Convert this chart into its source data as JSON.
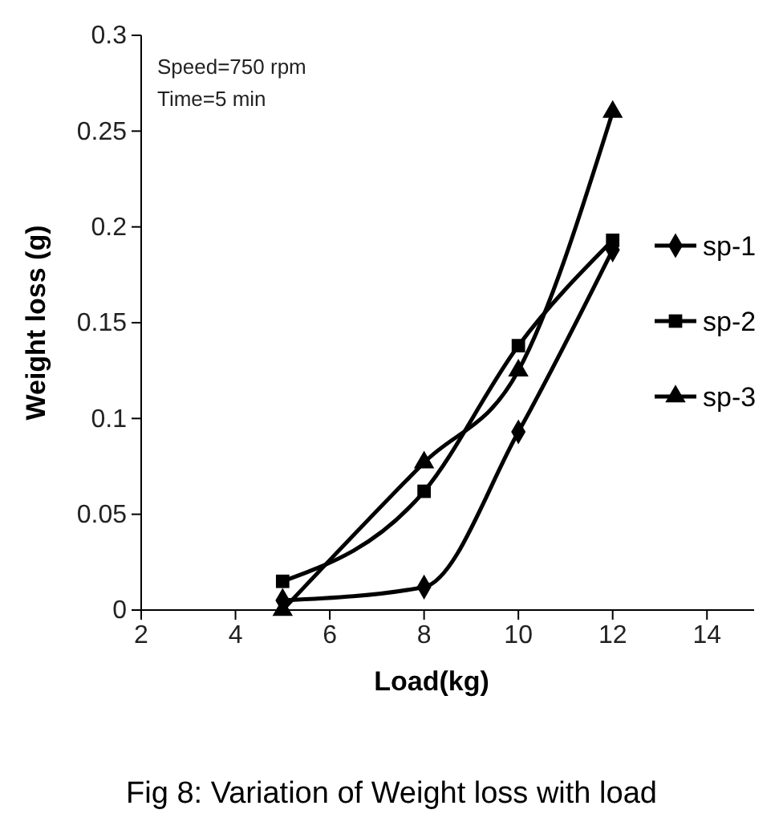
{
  "chart_data": {
    "type": "line",
    "title": "Fig 8: Variation of Weight loss with load",
    "xlabel": "Load(kg)",
    "ylabel": "Weight loss (g)",
    "annotations": [
      "Speed=750 rpm",
      "Time=5 min"
    ],
    "x": [
      5,
      8,
      10,
      12
    ],
    "series": [
      {
        "name": "sp-1",
        "color": "#000000",
        "marker": "diamond",
        "values": [
          0.005,
          0.012,
          0.093,
          0.188
        ]
      },
      {
        "name": "sp-2",
        "color": "#000000",
        "marker": "square",
        "values": [
          0.015,
          0.062,
          0.138,
          0.193
        ]
      },
      {
        "name": "sp-3",
        "color": "#000000",
        "marker": "triangle",
        "values": [
          0.0,
          0.077,
          0.125,
          0.26
        ]
      }
    ],
    "xlim": [
      2,
      15
    ],
    "xticks": [
      2,
      4,
      6,
      8,
      10,
      12,
      14
    ],
    "ylim": [
      0,
      0.3
    ],
    "yticks": [
      0,
      0.05,
      0.1,
      0.15,
      0.2,
      0.25,
      0.3
    ],
    "grid": false,
    "legend": "right",
    "line_style": "solid"
  }
}
